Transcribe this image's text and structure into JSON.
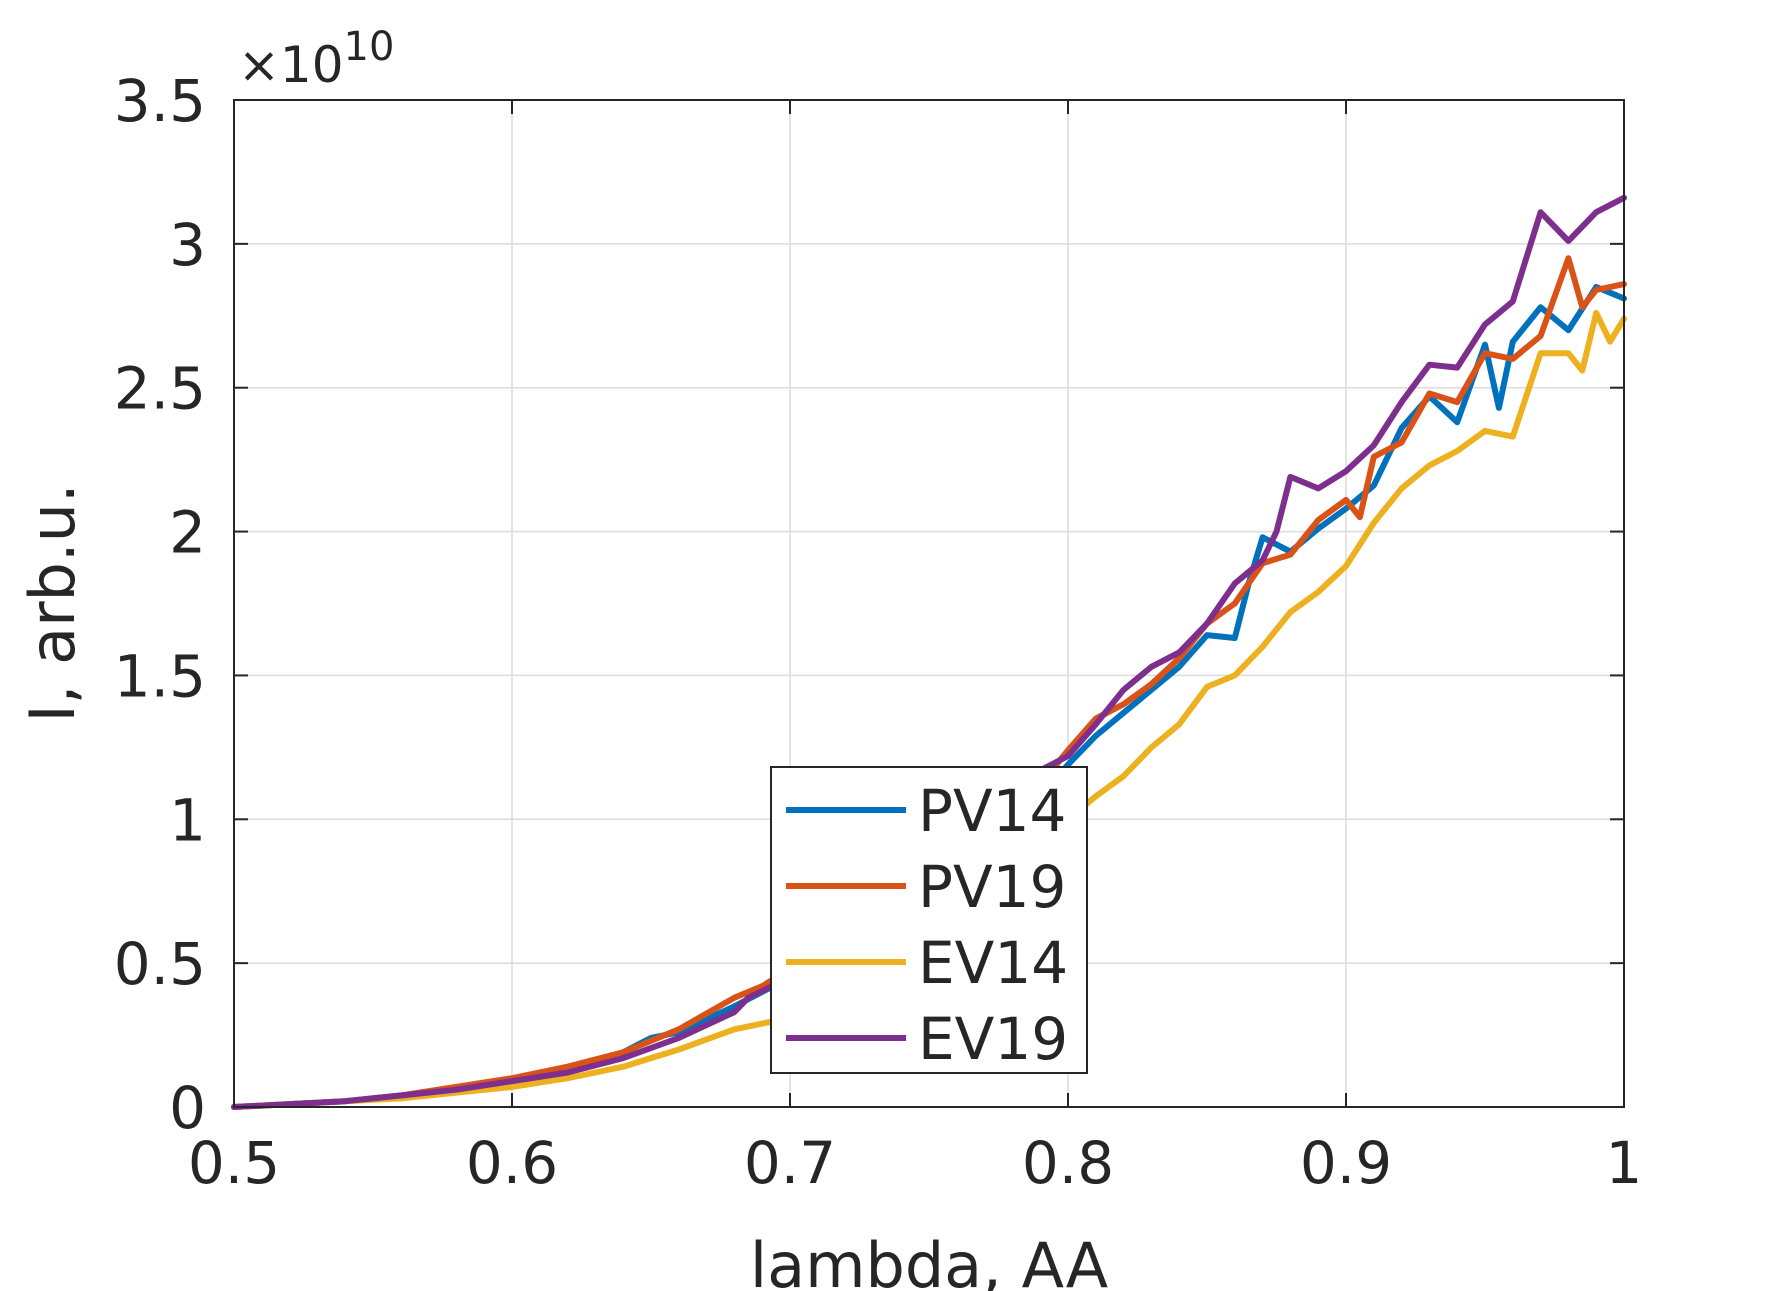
{
  "chart_data": {
    "type": "line",
    "title": "",
    "xlabel": "lambda, AA",
    "ylabel": "I, arb.u.",
    "y_exponent_label": "×10",
    "y_exponent_power": "10",
    "xlim": [
      0.5,
      1.0
    ],
    "ylim": [
      0,
      3.5
    ],
    "y_scale_factor": 10000000000.0,
    "xticks": [
      0.5,
      0.6,
      0.7,
      0.8,
      0.9,
      1.0
    ],
    "xtick_labels": [
      "0.5",
      "0.6",
      "0.7",
      "0.8",
      "0.9",
      "1"
    ],
    "yticks": [
      0,
      0.5,
      1,
      1.5,
      2,
      2.5,
      3,
      3.5
    ],
    "ytick_labels": [
      "0",
      "0.5",
      "1",
      "1.5",
      "2",
      "2.5",
      "3",
      "3.5"
    ],
    "grid": true,
    "legend_position": "bottom-center",
    "series": [
      {
        "name": "PV14",
        "color": "#0072BD",
        "points": [
          [
            0.5,
            0.0
          ],
          [
            0.52,
            0.01
          ],
          [
            0.54,
            0.02
          ],
          [
            0.56,
            0.04
          ],
          [
            0.58,
            0.06
          ],
          [
            0.6,
            0.09
          ],
          [
            0.62,
            0.13
          ],
          [
            0.64,
            0.19
          ],
          [
            0.65,
            0.24
          ],
          [
            0.66,
            0.26
          ],
          [
            0.68,
            0.35
          ],
          [
            0.7,
            0.45
          ],
          [
            0.72,
            0.55
          ],
          [
            0.74,
            0.68
          ],
          [
            0.76,
            0.82
          ],
          [
            0.78,
            0.98
          ],
          [
            0.79,
            1.08
          ],
          [
            0.8,
            1.19
          ],
          [
            0.81,
            1.29
          ],
          [
            0.82,
            1.37
          ],
          [
            0.83,
            1.45
          ],
          [
            0.84,
            1.53
          ],
          [
            0.85,
            1.64
          ],
          [
            0.86,
            1.63
          ],
          [
            0.865,
            1.82
          ],
          [
            0.87,
            1.98
          ],
          [
            0.88,
            1.93
          ],
          [
            0.89,
            2.01
          ],
          [
            0.9,
            2.08
          ],
          [
            0.91,
            2.16
          ],
          [
            0.92,
            2.36
          ],
          [
            0.93,
            2.47
          ],
          [
            0.94,
            2.38
          ],
          [
            0.95,
            2.65
          ],
          [
            0.955,
            2.43
          ],
          [
            0.96,
            2.66
          ],
          [
            0.97,
            2.78
          ],
          [
            0.98,
            2.7
          ],
          [
            0.99,
            2.85
          ],
          [
            1.0,
            2.81
          ]
        ]
      },
      {
        "name": "PV19",
        "color": "#D95319",
        "points": [
          [
            0.5,
            0.0
          ],
          [
            0.52,
            0.01
          ],
          [
            0.54,
            0.02
          ],
          [
            0.56,
            0.04
          ],
          [
            0.58,
            0.07
          ],
          [
            0.6,
            0.1
          ],
          [
            0.62,
            0.14
          ],
          [
            0.64,
            0.19
          ],
          [
            0.66,
            0.27
          ],
          [
            0.68,
            0.38
          ],
          [
            0.69,
            0.42
          ],
          [
            0.7,
            0.48
          ],
          [
            0.72,
            0.58
          ],
          [
            0.74,
            0.72
          ],
          [
            0.76,
            0.86
          ],
          [
            0.78,
            1.0
          ],
          [
            0.8,
            1.24
          ],
          [
            0.81,
            1.35
          ],
          [
            0.82,
            1.4
          ],
          [
            0.83,
            1.47
          ],
          [
            0.84,
            1.56
          ],
          [
            0.85,
            1.68
          ],
          [
            0.86,
            1.75
          ],
          [
            0.87,
            1.89
          ],
          [
            0.88,
            1.92
          ],
          [
            0.89,
            2.04
          ],
          [
            0.9,
            2.11
          ],
          [
            0.905,
            2.05
          ],
          [
            0.91,
            2.26
          ],
          [
            0.92,
            2.31
          ],
          [
            0.93,
            2.48
          ],
          [
            0.94,
            2.45
          ],
          [
            0.95,
            2.62
          ],
          [
            0.96,
            2.6
          ],
          [
            0.97,
            2.68
          ],
          [
            0.98,
            2.95
          ],
          [
            0.985,
            2.78
          ],
          [
            0.99,
            2.84
          ],
          [
            1.0,
            2.86
          ]
        ]
      },
      {
        "name": "EV14",
        "color": "#EDB120",
        "points": [
          [
            0.5,
            0.0
          ],
          [
            0.52,
            0.01
          ],
          [
            0.54,
            0.02
          ],
          [
            0.56,
            0.03
          ],
          [
            0.58,
            0.05
          ],
          [
            0.6,
            0.07
          ],
          [
            0.62,
            0.1
          ],
          [
            0.64,
            0.14
          ],
          [
            0.66,
            0.2
          ],
          [
            0.68,
            0.27
          ],
          [
            0.7,
            0.31
          ],
          [
            0.72,
            0.4
          ],
          [
            0.74,
            0.52
          ],
          [
            0.76,
            0.66
          ],
          [
            0.78,
            0.82
          ],
          [
            0.8,
            1.0
          ],
          [
            0.81,
            1.08
          ],
          [
            0.82,
            1.15
          ],
          [
            0.83,
            1.25
          ],
          [
            0.84,
            1.33
          ],
          [
            0.85,
            1.46
          ],
          [
            0.86,
            1.5
          ],
          [
            0.87,
            1.6
          ],
          [
            0.88,
            1.72
          ],
          [
            0.89,
            1.79
          ],
          [
            0.9,
            1.88
          ],
          [
            0.91,
            2.03
          ],
          [
            0.92,
            2.15
          ],
          [
            0.93,
            2.23
          ],
          [
            0.94,
            2.28
          ],
          [
            0.95,
            2.35
          ],
          [
            0.96,
            2.33
          ],
          [
            0.97,
            2.62
          ],
          [
            0.98,
            2.62
          ],
          [
            0.985,
            2.56
          ],
          [
            0.99,
            2.76
          ],
          [
            0.995,
            2.66
          ],
          [
            1.0,
            2.74
          ]
        ]
      },
      {
        "name": "EV19",
        "color": "#7E2F8E",
        "points": [
          [
            0.5,
            0.0
          ],
          [
            0.52,
            0.01
          ],
          [
            0.54,
            0.02
          ],
          [
            0.56,
            0.04
          ],
          [
            0.58,
            0.06
          ],
          [
            0.6,
            0.09
          ],
          [
            0.62,
            0.12
          ],
          [
            0.64,
            0.17
          ],
          [
            0.66,
            0.24
          ],
          [
            0.68,
            0.33
          ],
          [
            0.685,
            0.38
          ],
          [
            0.7,
            0.45
          ],
          [
            0.72,
            0.58
          ],
          [
            0.74,
            0.72
          ],
          [
            0.76,
            0.86
          ],
          [
            0.78,
            1.02
          ],
          [
            0.79,
            1.17
          ],
          [
            0.8,
            1.22
          ],
          [
            0.81,
            1.33
          ],
          [
            0.82,
            1.45
          ],
          [
            0.83,
            1.53
          ],
          [
            0.84,
            1.58
          ],
          [
            0.85,
            1.68
          ],
          [
            0.86,
            1.82
          ],
          [
            0.87,
            1.9
          ],
          [
            0.875,
            2.0
          ],
          [
            0.88,
            2.19
          ],
          [
            0.89,
            2.15
          ],
          [
            0.9,
            2.21
          ],
          [
            0.91,
            2.3
          ],
          [
            0.92,
            2.45
          ],
          [
            0.93,
            2.58
          ],
          [
            0.94,
            2.57
          ],
          [
            0.95,
            2.72
          ],
          [
            0.96,
            2.8
          ],
          [
            0.97,
            3.11
          ],
          [
            0.98,
            3.01
          ],
          [
            0.99,
            3.11
          ],
          [
            1.0,
            3.16
          ]
        ]
      }
    ]
  }
}
